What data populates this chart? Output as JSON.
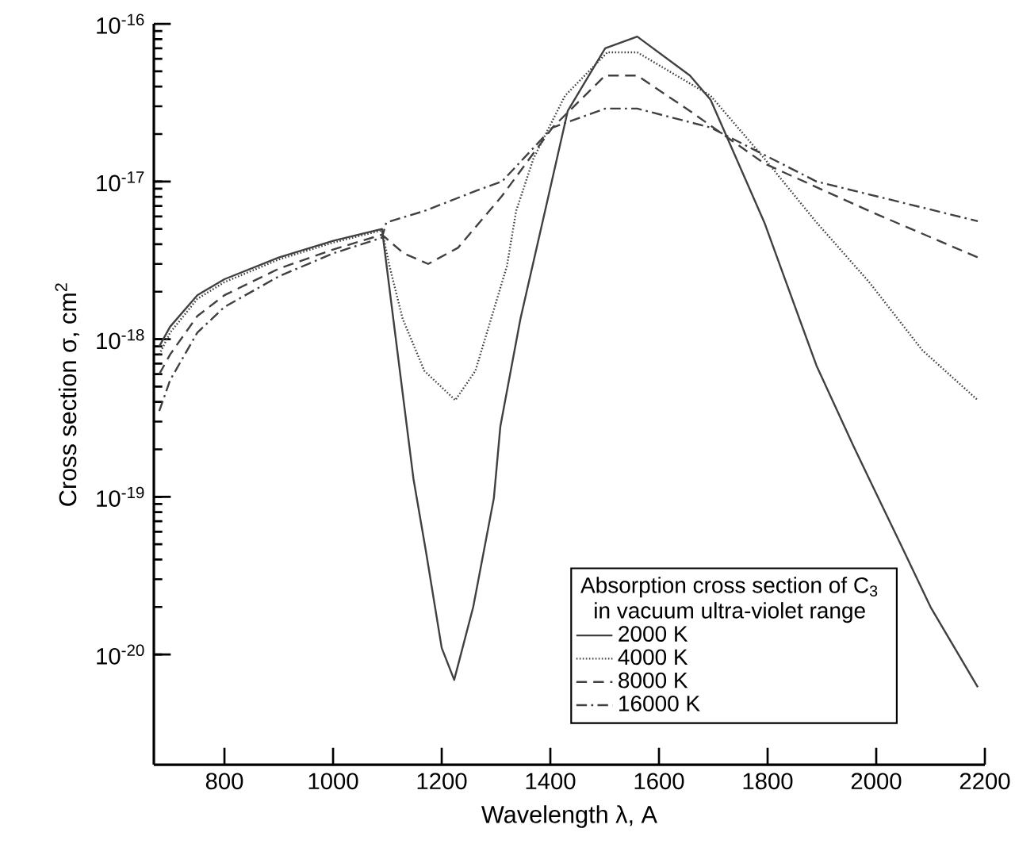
{
  "chart_data": {
    "type": "line",
    "xlabel": "Wavelength λ, A",
    "ylabel": "Cross section σ, cm$^{2}$",
    "legend_title": "Absorption cross section of C$_{3}$ in vacuum ultra-violet range",
    "legend": "bottom right",
    "log": "y",
    "xlim": [
      670,
      2200
    ],
    "ylim": [
      2e-21,
      1e-16
    ],
    "xticks": [
      800,
      1000,
      1200,
      1400,
      1600,
      1800,
      2000,
      2200
    ],
    "yticks": [
      {
        "value": 1e-20,
        "label": "10$^{-20}$"
      },
      {
        "value": 1e-19,
        "label": "10$^{-19}$"
      },
      {
        "value": 1e-18,
        "label": "10$^{-18}$"
      },
      {
        "value": 1e-17,
        "label": "10$^{-17}$"
      },
      {
        "value": 1e-16,
        "label": "10$^{-16}$"
      }
    ],
    "series": [
      {
        "name": "2000 K",
        "color": "#404040",
        "line_style": "solid",
        "x": [
          680,
          700,
          750,
          800,
          900,
          1000,
          1090,
          1148,
          1171,
          1200,
          1223,
          1258,
          1296,
          1308,
          1345,
          1394,
          1432,
          1501,
          1560,
          1657,
          1695,
          1794,
          1890,
          1958,
          1987,
          2045,
          2100,
          2187
        ],
        "values": [
          9e-19,
          1.2e-18,
          1.9e-18,
          2.4e-18,
          3.3e-18,
          4.2e-18,
          5e-18,
          1.3e-19,
          4.5e-20,
          1.1e-20,
          6.9e-21,
          2e-20,
          9.8e-20,
          2.8e-19,
          1.35e-18,
          7.4e-18,
          2.8e-17,
          7e-17,
          8.3e-17,
          4.7e-17,
          3.3e-17,
          5.5e-18,
          6.8e-19,
          2.1e-19,
          1.3e-19,
          5e-20,
          2e-20,
          6.2e-21
        ]
      },
      {
        "name": "4000 K",
        "color": "#404040",
        "line_style": "dotted",
        "x": [
          680,
          700,
          750,
          800,
          900,
          1000,
          1090,
          1104,
          1128,
          1168,
          1225,
          1262,
          1291,
          1320,
          1337,
          1369,
          1427,
          1505,
          1560,
          1695,
          1794,
          1890,
          1987,
          2085,
          2187
        ],
        "values": [
          8e-19,
          1.1e-18,
          1.8e-18,
          2.3e-18,
          3.2e-18,
          4.1e-18,
          4.9e-18,
          2.9e-18,
          1.35e-18,
          6.3e-19,
          4.1e-19,
          6.3e-19,
          1.35e-18,
          2.9e-18,
          6.5e-18,
          1.4e-17,
          3.5e-17,
          6.6e-17,
          6.6e-17,
          3.5e-17,
          1.4e-17,
          5.5e-18,
          2.3e-18,
          8.5e-19,
          4.1e-19
        ]
      },
      {
        "name": "8000 K",
        "color": "#404040",
        "line_style": "dashed",
        "x": [
          680,
          700,
          750,
          800,
          900,
          1000,
          1090,
          1130,
          1175,
          1230,
          1311,
          1404,
          1501,
          1560,
          1657,
          1794,
          1987,
          2187
        ],
        "values": [
          6e-19,
          8e-19,
          1.4e-18,
          1.9e-18,
          2.8e-18,
          3.7e-18,
          4.6e-18,
          3.5e-18,
          3e-18,
          3.8e-18,
          8.1e-18,
          2.2e-17,
          4.7e-17,
          4.7e-17,
          2.8e-17,
          1.3e-17,
          6.5e-18,
          3.3e-18
        ]
      },
      {
        "name": "16000 K",
        "color": "#404040",
        "line_style": "dashdot",
        "x": [
          680,
          700,
          750,
          800,
          900,
          1000,
          1090,
          1098,
          1168,
          1262,
          1311,
          1404,
          1501,
          1560,
          1695,
          1890,
          2187
        ],
        "values": [
          3.5e-19,
          5.5e-19,
          1.1e-18,
          1.6e-18,
          2.5e-18,
          3.5e-18,
          4.4e-18,
          5.5e-18,
          6.5e-18,
          8.7e-18,
          1e-17,
          2.2e-17,
          2.9e-17,
          2.9e-17,
          2.2e-17,
          1e-17,
          5.6e-18
        ]
      }
    ]
  }
}
